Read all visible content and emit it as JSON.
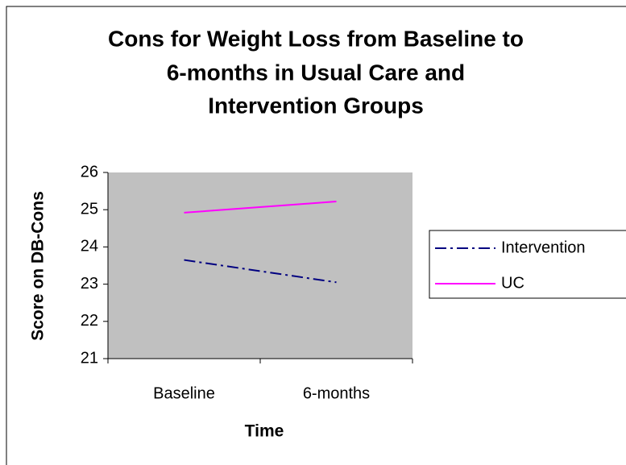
{
  "chart_data": {
    "type": "line",
    "title": [
      "Cons for Weight Loss from Baseline to",
      "6-months in Usual Care and",
      "Intervention Groups"
    ],
    "x_label": "Time",
    "y_label": "Score on DB-Cons",
    "categories": [
      "Baseline",
      "6-months"
    ],
    "series": [
      {
        "name": "Intervention",
        "color": "#000080",
        "dash": "dashdot",
        "values": [
          23.65,
          23.05
        ]
      },
      {
        "name": "UC",
        "color": "#ff00ff",
        "dash": "solid",
        "values": [
          24.92,
          25.22
        ]
      }
    ],
    "ylim": [
      21,
      26
    ],
    "yticks": [
      21,
      22,
      23,
      24,
      25,
      26
    ],
    "grid": false,
    "legend": "right",
    "plot_background": "#c0c0c0"
  }
}
